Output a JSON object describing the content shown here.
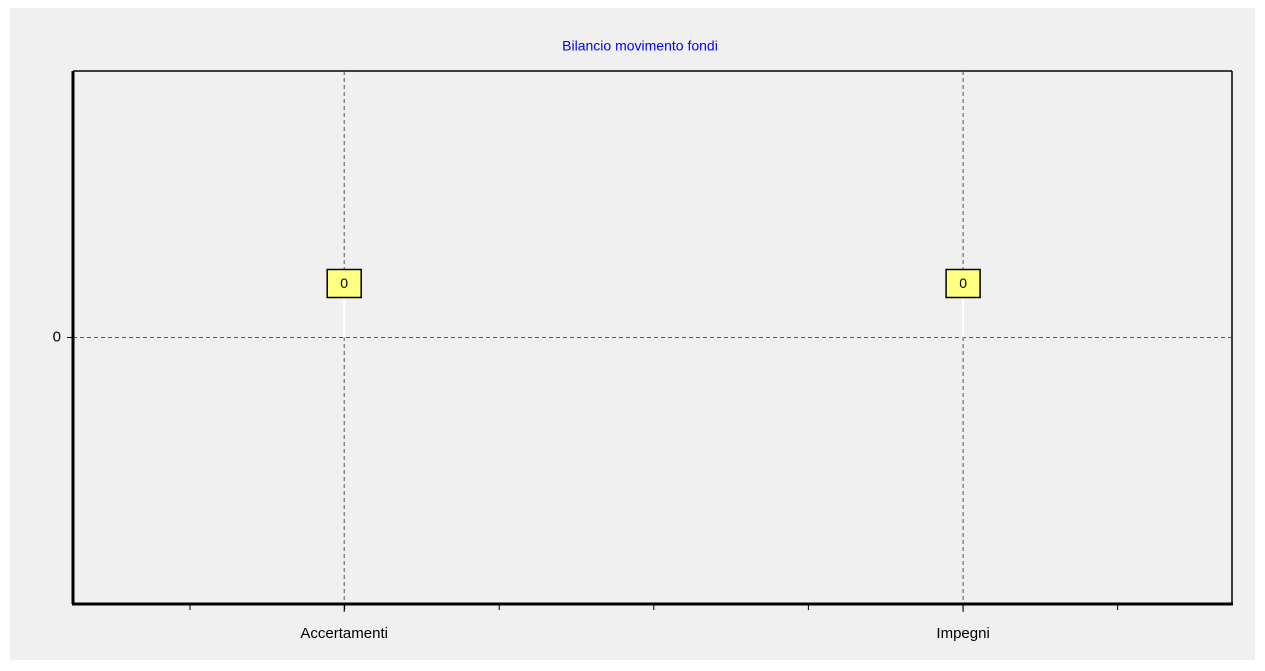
{
  "chart_data": {
    "type": "bar",
    "title": "Bilancio movimento fondi",
    "categories": [
      "Accertamenti",
      "Impegni"
    ],
    "values": [
      0,
      0
    ],
    "ylim": [
      -1,
      1
    ],
    "yticks": [
      0
    ],
    "grid": true,
    "label_color": "#ffff80"
  }
}
